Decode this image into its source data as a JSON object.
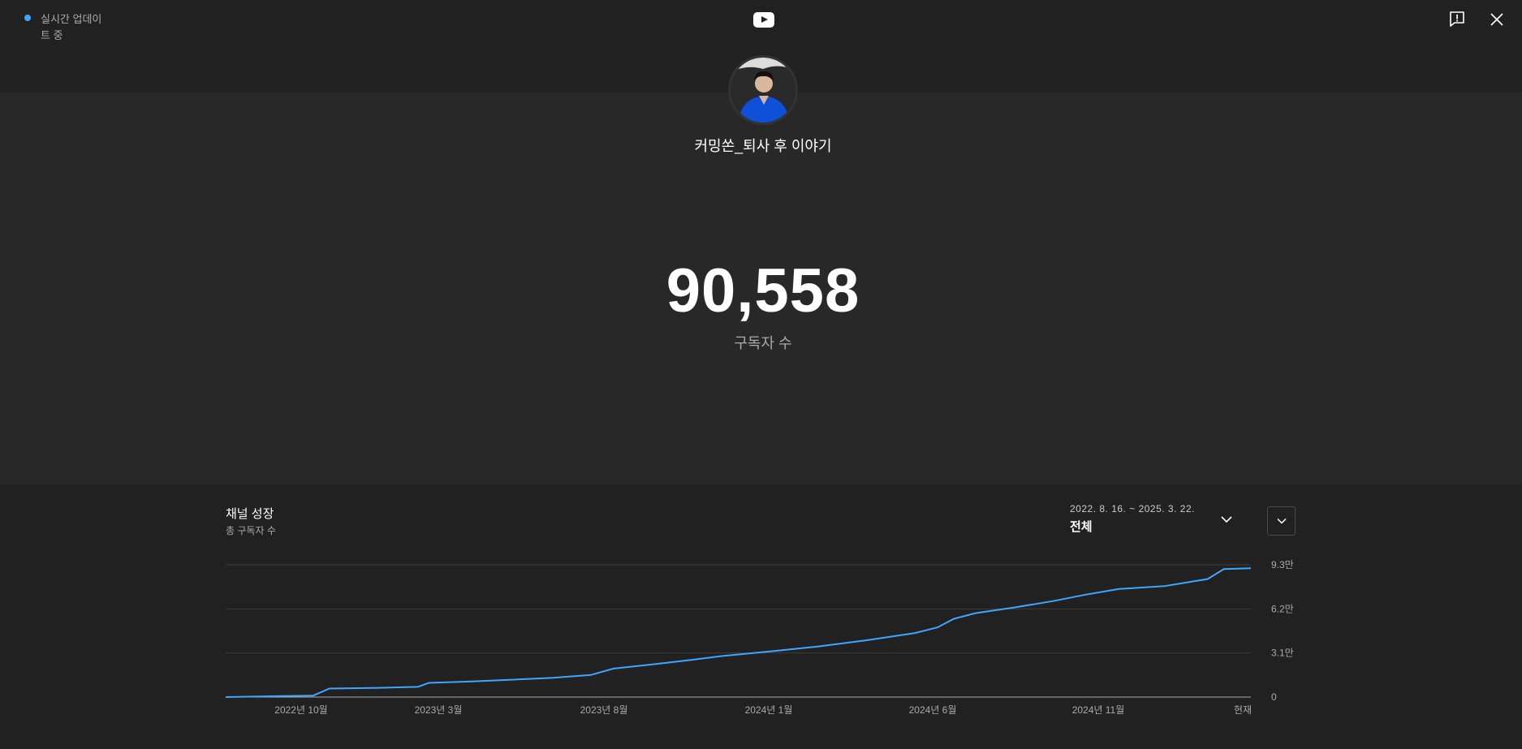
{
  "header": {
    "live_status": "실시간 업데이트 중",
    "live_dot_color": "#3ea6ff",
    "logo_icon": "youtube-logo-icon",
    "feedback_icon": "feedback-flag-icon",
    "close_icon": "close-icon"
  },
  "channel": {
    "name": "커밍쏜_퇴사 후 이야기",
    "subscriber_count": "90,558",
    "subscriber_label": "구독자 수"
  },
  "growth": {
    "title": "채널 성장",
    "subtitle": "총 구독자 수",
    "range_dates": "2022. 8. 16. ~ 2025. 3. 22.",
    "range_label": "전체"
  },
  "chart_data": {
    "type": "line",
    "color": "#3ea6ff",
    "x_tick_labels": [
      "2022년 10월",
      "2023년 3월",
      "2023년 8월",
      "2024년 1월",
      "2024년 6월",
      "2024년 11월",
      "현재"
    ],
    "y_tick_labels": [
      "0",
      "3.1만",
      "6.2만",
      "9.3만"
    ],
    "ylim": [
      0,
      93000
    ],
    "grid": true,
    "series": [
      {
        "x": [
          "2022-08-16",
          "2022-10-01",
          "2022-11-05",
          "2022-11-20",
          "2023-01-05",
          "2023-02-10",
          "2023-02-20",
          "2023-04-01",
          "2023-05-01",
          "2023-06-15",
          "2023-07-20",
          "2023-08-10",
          "2023-09-15",
          "2023-10-20",
          "2023-11-20",
          "2024-01-01",
          "2024-02-15",
          "2024-04-01",
          "2024-05-15",
          "2024-06-05",
          "2024-06-20",
          "2024-07-10",
          "2024-08-15",
          "2024-09-20",
          "2024-10-20",
          "2024-11-20",
          "2025-01-01",
          "2025-02-10",
          "2025-02-25",
          "2025-03-22"
        ],
        "values": [
          0,
          600,
          1000,
          6000,
          6500,
          7200,
          10000,
          11000,
          12000,
          13500,
          15500,
          20000,
          23000,
          26000,
          29000,
          32000,
          35500,
          40000,
          45000,
          49000,
          55000,
          59000,
          63000,
          67500,
          72000,
          76000,
          78000,
          83000,
          90000,
          90558
        ]
      }
    ]
  }
}
